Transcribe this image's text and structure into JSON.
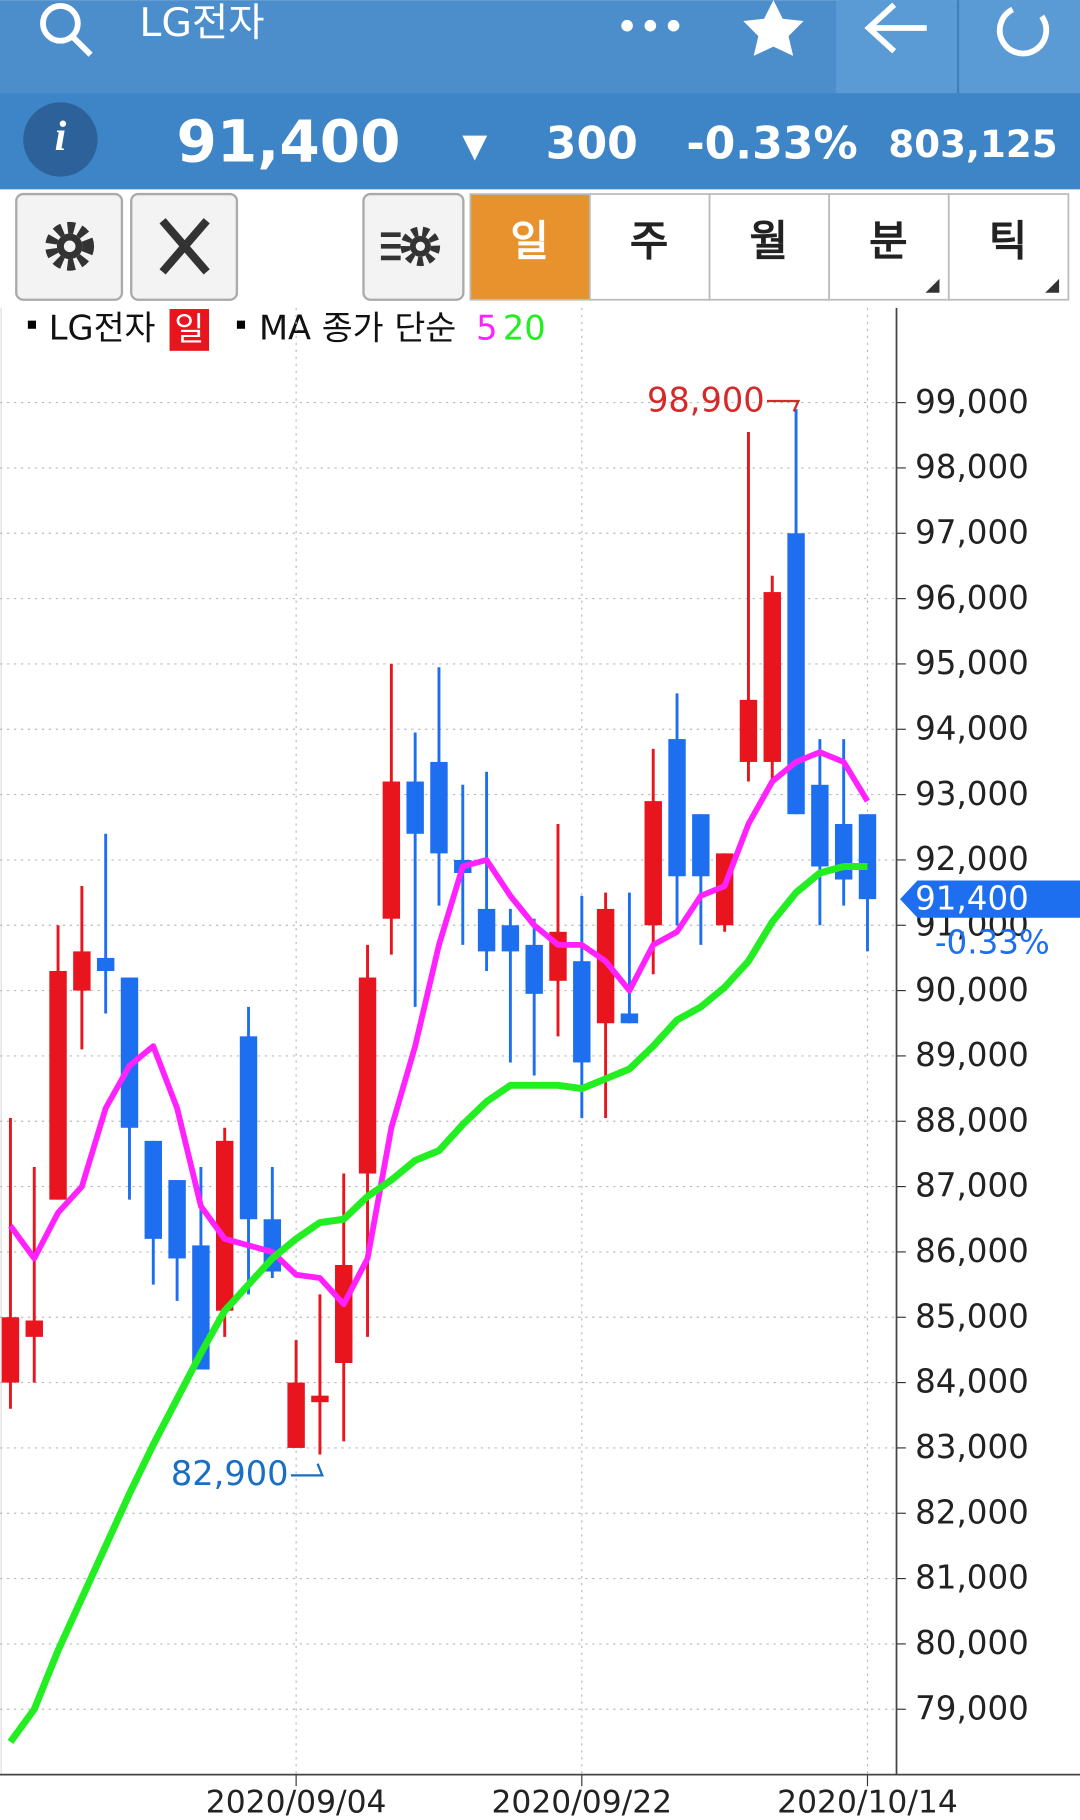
{
  "header": {
    "title": "LG전자"
  },
  "quote": {
    "price": "91,400",
    "arrow": "▼",
    "change": "300",
    "change_pct": "-0.33%",
    "volume": "803,125"
  },
  "tabs": [
    "일",
    "주",
    "월",
    "분",
    "틱"
  ],
  "chart_data": {
    "type": "candlestick",
    "name": "LG전자",
    "period": "일",
    "legend_label": "MA 종가 단순",
    "up_color": "#e8141e",
    "down_color": "#1e6ff0",
    "categories": [
      null,
      null,
      null,
      null,
      null,
      null,
      null,
      null,
      null,
      null,
      null,
      null,
      "2020/09/04",
      null,
      null,
      null,
      null,
      null,
      null,
      null,
      null,
      null,
      null,
      null,
      "2020/09/22",
      null,
      null,
      null,
      null,
      null,
      null,
      null,
      null,
      null,
      null,
      null,
      "2020/10/14"
    ],
    "open": [
      84000,
      84700,
      86800,
      90000,
      90500,
      90200,
      87700,
      87100,
      86100,
      85100,
      89300,
      86500,
      83000,
      83700,
      84300,
      87200,
      91100,
      93200,
      93500,
      92000,
      91250,
      91000,
      90700,
      90150,
      90450,
      89500,
      89650,
      91000,
      93850,
      92700,
      91000,
      93500,
      93500,
      97000,
      93150,
      92550,
      92700
    ],
    "high": [
      88050,
      87300,
      91000,
      91600,
      92400,
      90200,
      87700,
      87100,
      87300,
      87900,
      89750,
      87300,
      84650,
      85350,
      87200,
      90700,
      95000,
      93950,
      94950,
      93150,
      93350,
      91250,
      91100,
      92550,
      91450,
      91500,
      91500,
      93700,
      94550,
      92700,
      92100,
      98550,
      96350,
      98900,
      93850,
      93850,
      92700
    ],
    "low": [
      83600,
      84000,
      86800,
      89100,
      89650,
      86800,
      85500,
      85250,
      84200,
      84700,
      85350,
      85600,
      83000,
      82900,
      83100,
      84700,
      90550,
      89750,
      91300,
      90700,
      90300,
      88900,
      88700,
      89300,
      88050,
      88050,
      89500,
      90250,
      91000,
      90700,
      90900,
      93200,
      93200,
      92700,
      91000,
      91300,
      90600
    ],
    "close": [
      85000,
      84950,
      90300,
      90600,
      90300,
      87900,
      86200,
      85900,
      84200,
      87700,
      86500,
      85700,
      84000,
      83800,
      85800,
      90200,
      93200,
      92400,
      92100,
      91800,
      90600,
      90600,
      89950,
      90900,
      88900,
      91250,
      89500,
      92900,
      91750,
      91750,
      92100,
      94450,
      96100,
      92700,
      91900,
      91700,
      91400
    ],
    "series": [
      {
        "name": "5",
        "color": "#ff22ff",
        "values": [
          86400,
          85900,
          86600,
          87000,
          88200,
          88850,
          89150,
          88200,
          86700,
          86200,
          86100,
          86000,
          85650,
          85600,
          85200,
          85900,
          87900,
          89150,
          90700,
          91900,
          92000,
          91450,
          91000,
          90700,
          90700,
          90450,
          90000,
          90700,
          90900,
          91450,
          91600,
          92550,
          93200,
          93500,
          93650,
          93500,
          92900
        ]
      },
      {
        "name": "20",
        "color": "#22ee22",
        "values": [
          78500,
          79000,
          79900,
          80700,
          81500,
          82300,
          83050,
          83750,
          84450,
          85100,
          85500,
          85900,
          86200,
          86450,
          86500,
          86850,
          87100,
          87400,
          87550,
          87950,
          88300,
          88550,
          88550,
          88550,
          88500,
          88650,
          88800,
          89150,
          89550,
          89750,
          90050,
          90450,
          91050,
          91500,
          91800,
          91900,
          91900
        ]
      }
    ],
    "ylim": [
      78000,
      100450
    ],
    "yticks": [
      {
        "value": 79000,
        "label": "79,000"
      },
      {
        "value": 80000,
        "label": "80,000"
      },
      {
        "value": 81000,
        "label": "81,000"
      },
      {
        "value": 82000,
        "label": "82,000"
      },
      {
        "value": 83000,
        "label": "83,000"
      },
      {
        "value": 84000,
        "label": "84,000"
      },
      {
        "value": 85000,
        "label": "85,000"
      },
      {
        "value": 86000,
        "label": "86,000"
      },
      {
        "value": 87000,
        "label": "87,000"
      },
      {
        "value": 88000,
        "label": "88,000"
      },
      {
        "value": 89000,
        "label": "89,000"
      },
      {
        "value": 90000,
        "label": "90,000"
      },
      {
        "value": 91000,
        "label": "91,000"
      },
      {
        "value": 92000,
        "label": "92,000"
      },
      {
        "value": 93000,
        "label": "93,000"
      },
      {
        "value": 94000,
        "label": "94,000"
      },
      {
        "value": 95000,
        "label": "95,000"
      },
      {
        "value": 96000,
        "label": "96,000"
      },
      {
        "value": 97000,
        "label": "97,000"
      },
      {
        "value": 98000,
        "label": "98,000"
      },
      {
        "value": 99000,
        "label": "99,000"
      }
    ],
    "grid": true,
    "max_label": "98,900",
    "min_label": "82,900",
    "last_label": "91,400",
    "last_change": "-0.33%"
  }
}
